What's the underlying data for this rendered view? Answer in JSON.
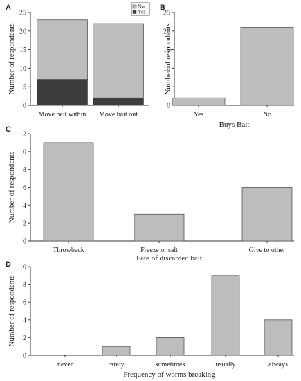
{
  "chart_data": [
    {
      "panel": "A",
      "type": "bar",
      "stacked": true,
      "categories": [
        "Move bait within",
        "Move bait out"
      ],
      "series": [
        {
          "name": "Yes",
          "values": [
            7,
            2
          ],
          "color": "#3d3d3d"
        },
        {
          "name": "No",
          "values": [
            16,
            20
          ],
          "color": "#bdbdbd"
        }
      ],
      "xlabel": "",
      "ylabel": "Number of respondents",
      "ylim": [
        0,
        25
      ],
      "yticks": [
        "0",
        "5",
        "10",
        "15",
        "20",
        "25"
      ],
      "legend": "top-right",
      "grid": false
    },
    {
      "panel": "B",
      "type": "bar",
      "categories": [
        "Yes",
        "No"
      ],
      "values": [
        2,
        21
      ],
      "xlabel": "Buys Bait",
      "ylabel": "Number of respondents",
      "ylim": [
        0,
        25
      ],
      "yticks": [
        "0",
        "5",
        "10",
        "15",
        "20",
        "25"
      ],
      "grid": false
    },
    {
      "panel": "C",
      "type": "bar",
      "categories": [
        "Throwback",
        "Freeze or salt",
        "Give to other"
      ],
      "values": [
        11,
        3,
        6
      ],
      "xlabel": "Fate of discarded bait",
      "ylabel": "Number of respondents",
      "ylim": [
        0,
        12
      ],
      "yticks": [
        "0",
        "2",
        "4",
        "6",
        "8",
        "10",
        "12"
      ],
      "grid": false
    },
    {
      "panel": "D",
      "type": "bar",
      "categories": [
        "never",
        "rarely",
        "sometimes",
        "usually",
        "always"
      ],
      "values": [
        0,
        1,
        2,
        9,
        4
      ],
      "xlabel": "Frequency of worms breaking",
      "ylabel": "Number of respondents",
      "ylim": [
        0,
        10
      ],
      "yticks": [
        "0",
        "2",
        "4",
        "6",
        "8",
        "10"
      ],
      "grid": false
    }
  ],
  "colors": {
    "bar": "#bdbdbd",
    "stroke": "#555555",
    "axis": "#333333"
  }
}
